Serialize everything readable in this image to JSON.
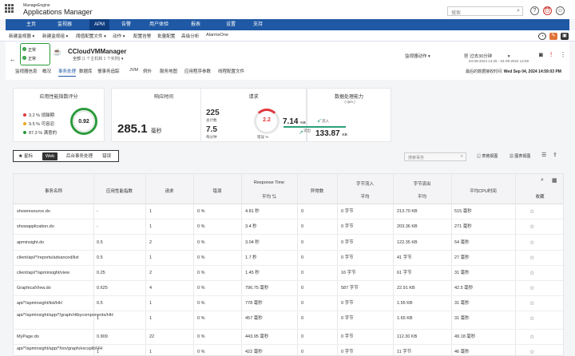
{
  "app": {
    "brand": "ManageEngine",
    "title": "Applications Manager",
    "search_placeholder": "搜索"
  },
  "nav": [
    "主页",
    "监视器",
    "APM",
    "告警",
    "用户体验",
    "报表",
    "设置",
    "支持"
  ],
  "subnav": [
    "新建监视器 ▾",
    "新建监视组 ▾",
    "阈值配置文件 ▾",
    "动作 ▾",
    "配置告警",
    "批量配置",
    "高级分析",
    "AlarmsOne"
  ],
  "monitor": {
    "badge1": "正常",
    "badge2": "正常",
    "name": "CCloudVMManager",
    "all": "全部",
    "all_sub": "(1 个主机和 1 个实例)",
    "action": "监视器动作",
    "period": "过去30分钟",
    "period_range": "04-09-2024 14:25 - 04-09-2024 14:59",
    "last_update_label": "最后的数据接收时间:",
    "last_update": "Wed Sep 04, 2024 14:59:03 PM"
  },
  "monitor_tabs": [
    "监视器信息",
    "概况",
    "事务处理",
    "数据库",
    "慢事务追踪",
    "JVM",
    "例外",
    "服务地图",
    "应用程序参数",
    "线程配置文件"
  ],
  "cards": {
    "apdex": {
      "title": "应用性能指数评分",
      "score": "0.92",
      "frustrated": "3.2 % 烦躁期",
      "tolerating": "9.5 % 可容忍",
      "satisfied": "87.3 % 满意的"
    },
    "response": {
      "title": "响应时间",
      "value": "285.1",
      "unit": "毫秒"
    },
    "requests": {
      "title": "请求",
      "total": "225",
      "total_label": "总计数",
      "per_min": "7.5",
      "per_min_label": "每分钟",
      "error": "2.2",
      "error_label": "错误 %"
    },
    "throughput": {
      "title": "数据处理能力",
      "unit_label": "( rpm )",
      "in_value": "7.14",
      "in_unit": "KB",
      "in_label": "流入",
      "out_value": "133.87",
      "out_unit": "KB",
      "out_label": "流出"
    }
  },
  "toolbar": {
    "starred": "星标",
    "web": "Web",
    "background": "后台事务处理",
    "error": "错误",
    "search_placeholder": "搜索事务",
    "table_view": "表格视图",
    "chart_view": "图表视图"
  },
  "table": {
    "headers": [
      "事务名称",
      "应用性能指数",
      "请求",
      "错误",
      "Response Time",
      "异常数",
      "字节流入",
      "字节流出",
      "平均CPU时间",
      ""
    ],
    "sub_rt": "平均 ⇅",
    "sub_in": "平均",
    "sub_out": "平均",
    "sub_cpu": "",
    "fav": "收藏",
    "rows": [
      [
        "showresource.do",
        "-",
        "1",
        "0 %",
        "4.81 秒",
        "0",
        "0 字节",
        "213.70 KB",
        "515 毫秒"
      ],
      [
        "showapplication.do",
        "-",
        "1",
        "0 %",
        "3.4 秒",
        "0",
        "0 字节",
        "203.36 KB",
        "271 毫秒"
      ],
      [
        "apminsight.do",
        "0.5",
        "2",
        "0 %",
        "3.04 秒",
        "0",
        "0 字节",
        "122.35 KB",
        "54 毫秒"
      ],
      [
        "client/api/*/reports/advanced/list",
        "0.5",
        "1",
        "0 %",
        "1.7 秒",
        "0",
        "0 字节",
        "41 字节",
        "27 毫秒"
      ],
      [
        "client/api/*/apminsight/view",
        "0.25",
        "2",
        "0 %",
        "1.45 秒",
        "0",
        "16 字节",
        "61 字节",
        "31 毫秒"
      ],
      [
        "GraphicalView.do",
        "0.625",
        "4",
        "0 %",
        "796.75 毫秒",
        "0",
        "587 字节",
        "22.91 KB",
        "42.5 毫秒"
      ],
      [
        "api/*/apminsight/list/HH",
        "0.5",
        "1",
        "0 %",
        "778 毫秒",
        "0",
        "0 字节",
        "1.55 KB",
        "31 毫秒"
      ],
      [
        "api/*/apminsight/app/*/graph/rttbycomponents/HH",
        "1",
        "1",
        "0 %",
        "457 毫秒",
        "0",
        "0 字节",
        "1.65 KB",
        "31 毫秒"
      ],
      [
        "MyPage.do",
        "0.909",
        "22",
        "0 %",
        "443.95 毫秒",
        "0",
        "0 字节",
        "112.30 KB",
        "49.18 毫秒"
      ],
      [
        "api/*/apminsight/app/*/txn/graph/excsplit/HH",
        "1",
        "1",
        "0 %",
        "422 毫秒",
        "0",
        "0 字节",
        "11 字节",
        "46 毫秒"
      ]
    ]
  },
  "colors": {
    "nav": "#1f58a4",
    "good": "#2a9a3a",
    "warn": "#f1a51c",
    "bad": "#e0393e",
    "teal": "#2aa07a"
  }
}
